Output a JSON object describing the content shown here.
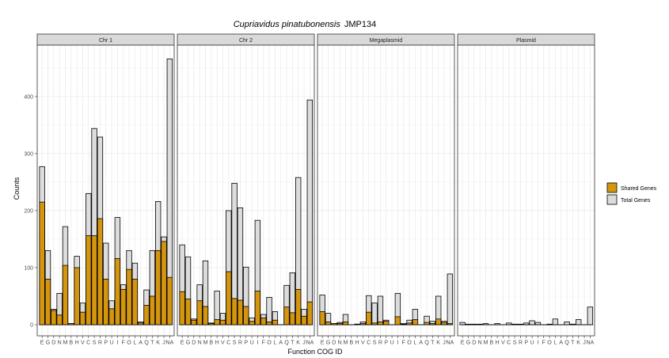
{
  "chart_data": {
    "type": "bar",
    "title_italic": "Cupriavidus pinatubonensis",
    "title_suffix": "JMP134",
    "xlabel": "Function COG ID",
    "ylabel": "Counts",
    "ylim": [
      0,
      470
    ],
    "yticks": [
      0,
      100,
      200,
      300,
      400
    ],
    "grid": true,
    "legend_position": "right",
    "legend": [
      {
        "name": "Shared Genes",
        "color": "#D4950F"
      },
      {
        "name": "Total Genes",
        "color": "#DCDCDC"
      }
    ],
    "categories": [
      "E",
      "G",
      "D",
      "N",
      "M",
      "B",
      "H",
      "V",
      "C",
      "S",
      "R",
      "P",
      "U",
      "I",
      "F",
      "O",
      "L",
      "A",
      "Q",
      "T",
      "K",
      "J",
      "NA"
    ],
    "facets": [
      {
        "label": "Chr 1",
        "total": [
          277,
          130,
          27,
          55,
          172,
          2,
          120,
          38,
          230,
          344,
          329,
          143,
          42,
          188,
          70,
          130,
          108,
          5,
          61,
          130,
          216,
          154,
          466
        ],
        "shared": [
          215,
          80,
          25,
          17,
          104,
          2,
          100,
          22,
          156,
          156,
          186,
          80,
          28,
          116,
          62,
          97,
          80,
          3,
          34,
          50,
          130,
          146,
          83
        ]
      },
      {
        "label": "Chr 2",
        "total": [
          140,
          119,
          10,
          70,
          112,
          3,
          59,
          20,
          200,
          248,
          205,
          101,
          12,
          183,
          18,
          48,
          23,
          0,
          69,
          91,
          258,
          27,
          394
        ],
        "shared": [
          58,
          45,
          8,
          42,
          32,
          2,
          9,
          8,
          93,
          46,
          43,
          32,
          6,
          59,
          12,
          5,
          8,
          0,
          31,
          21,
          62,
          15,
          40
        ]
      },
      {
        "label": "Megaplasmid",
        "total": [
          52,
          20,
          2,
          4,
          18,
          0,
          1,
          5,
          51,
          38,
          50,
          8,
          0,
          55,
          2,
          8,
          27,
          0,
          15,
          6,
          50,
          6,
          89
        ],
        "shared": [
          23,
          5,
          2,
          2,
          5,
          0,
          1,
          2,
          22,
          3,
          5,
          6,
          0,
          14,
          1,
          3,
          9,
          0,
          4,
          2,
          10,
          4,
          2
        ]
      },
      {
        "label": "Plasmid",
        "total": [
          4,
          1,
          1,
          1,
          2,
          0,
          2,
          0,
          3,
          1,
          1,
          3,
          7,
          4,
          0,
          1,
          10,
          0,
          5,
          1,
          9,
          0,
          31
        ],
        "shared": [
          0,
          0,
          0,
          0,
          0,
          0,
          0,
          0,
          0,
          0,
          0,
          0,
          0,
          0,
          0,
          0,
          0,
          0,
          0,
          0,
          0,
          0,
          0
        ]
      }
    ]
  }
}
